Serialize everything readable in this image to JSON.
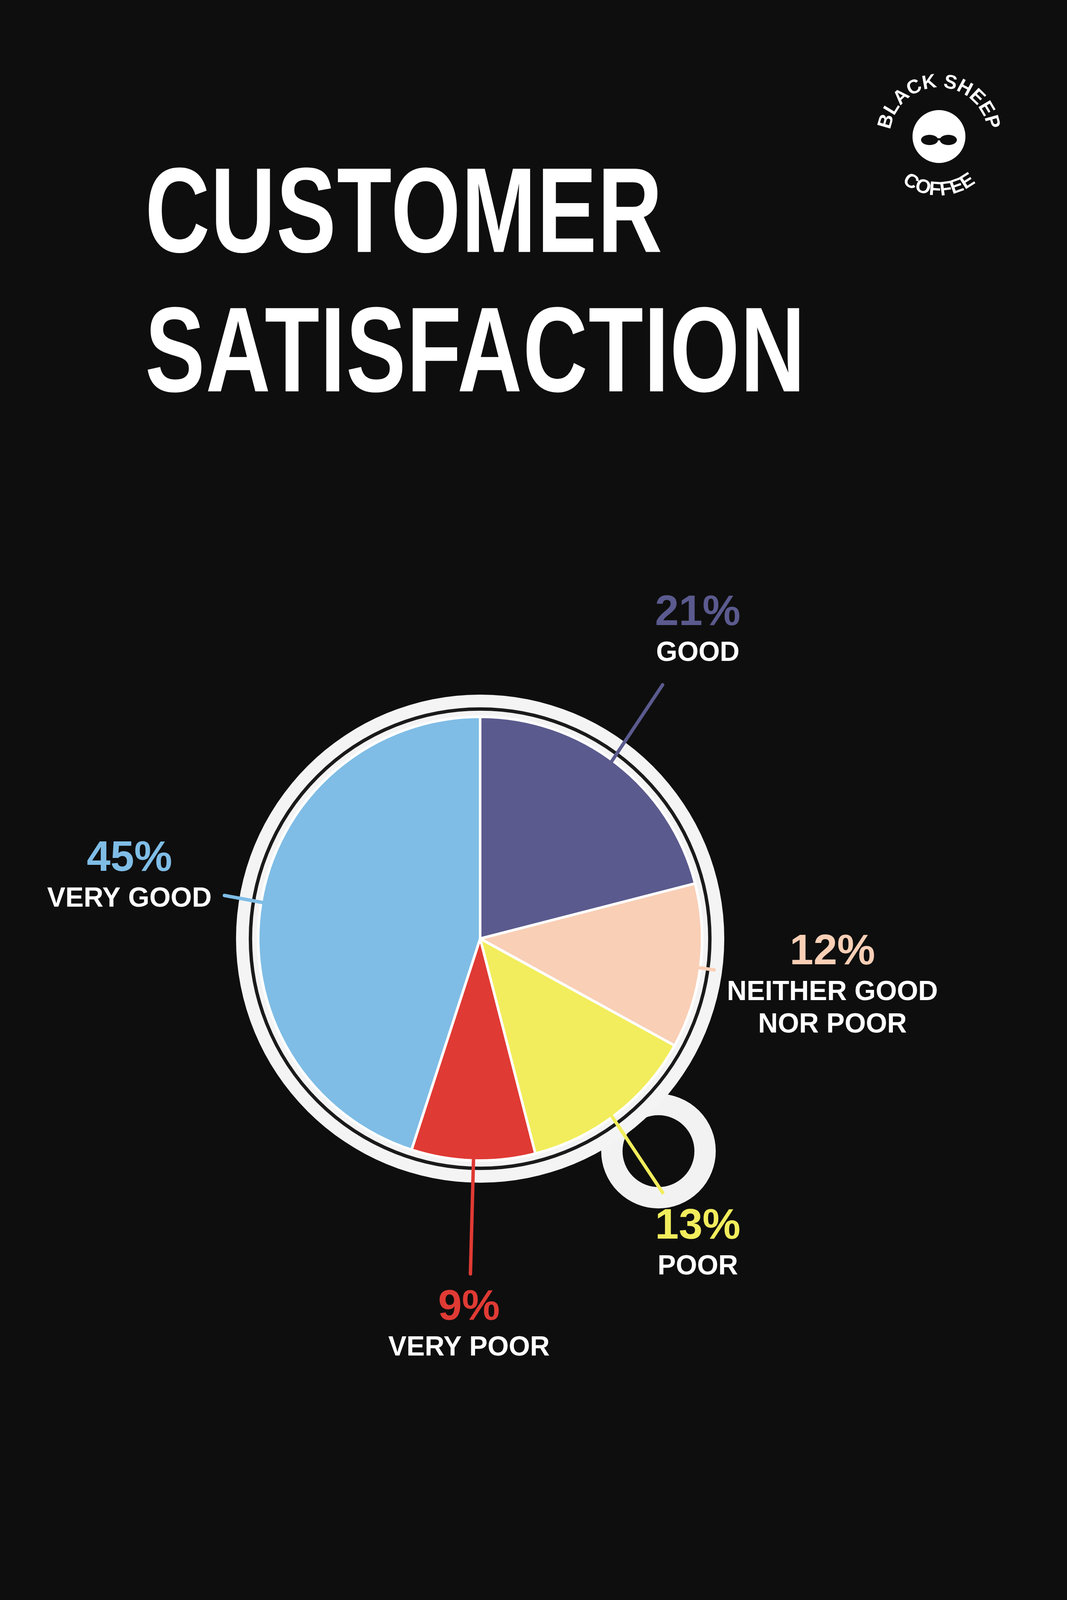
{
  "chart_data": {
    "type": "pie",
    "title": "CUSTOMER SATISFACTION",
    "categories": [
      "GOOD",
      "NEITHER GOOD NOR POOR",
      "POOR",
      "VERY POOR",
      "VERY GOOD"
    ],
    "values": [
      21,
      12,
      13,
      9,
      45
    ],
    "value_labels": [
      "21%",
      "12%",
      "13%",
      "9%",
      "45%"
    ],
    "colors": [
      "#5b5a8e",
      "#f9cfb6",
      "#f2ed5c",
      "#e03a34",
      "#7fbde6"
    ],
    "data_labels": true
  },
  "logo": {
    "top": "BLACK SHEEP",
    "bottom": "COFFEE"
  }
}
